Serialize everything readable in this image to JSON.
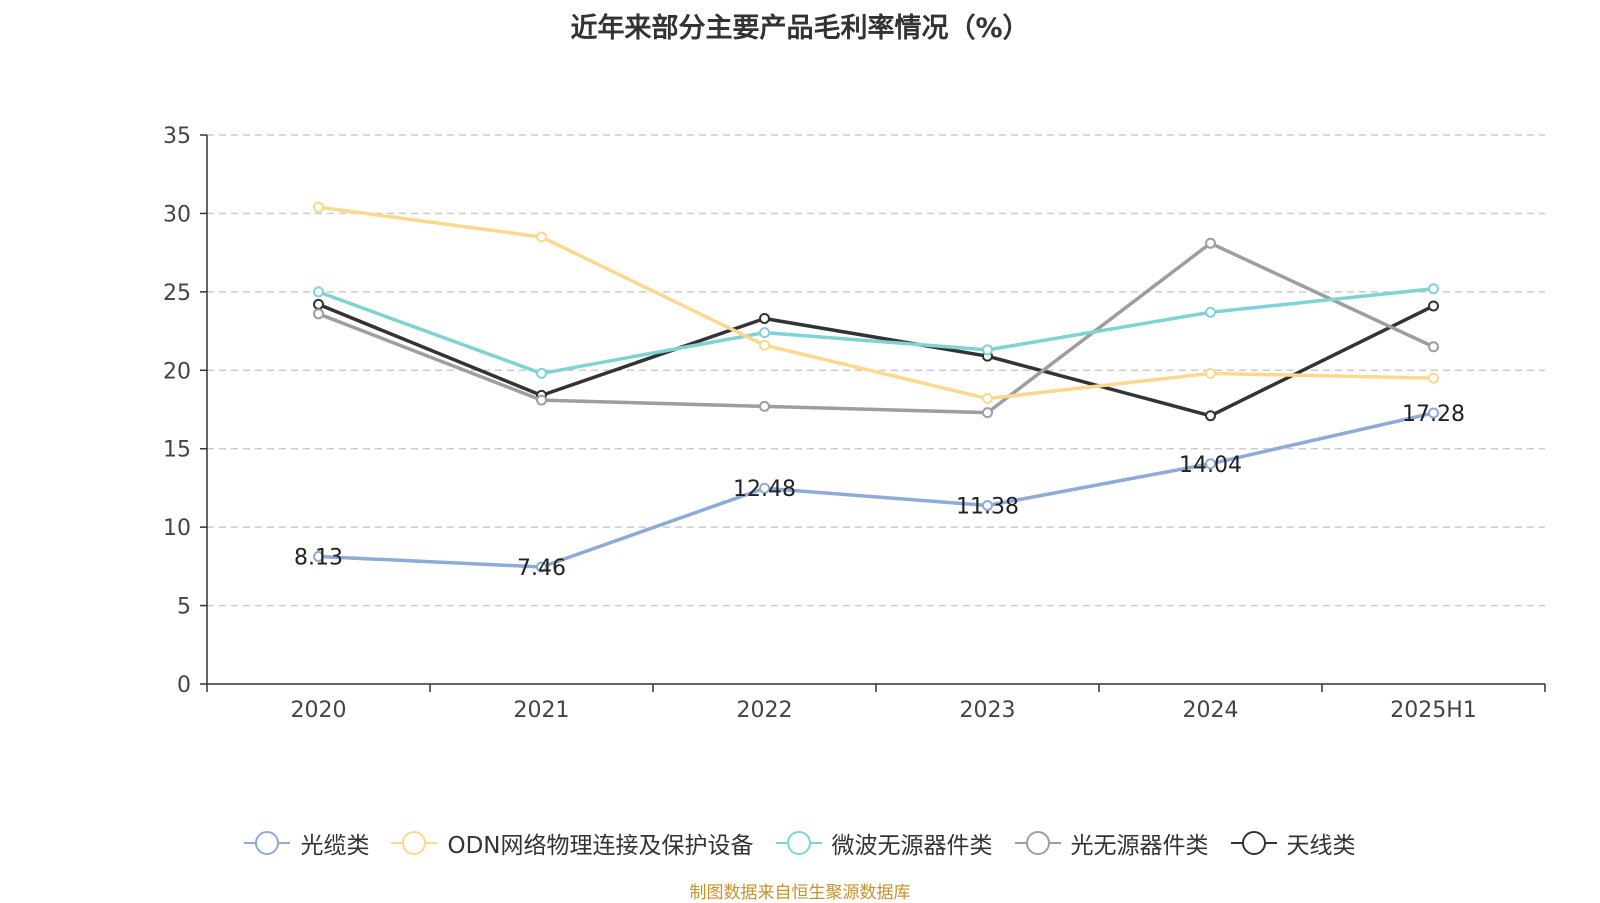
{
  "title": "近年来部分主要产品毛利率情况（%）",
  "source_note": "制图数据来自恒生聚源数据库",
  "chart_data": {
    "type": "line",
    "categories": [
      "2020",
      "2021",
      "2022",
      "2023",
      "2024",
      "2025H1"
    ],
    "ylim": [
      0,
      35
    ],
    "yticks": [
      0,
      5,
      10,
      15,
      20,
      25,
      30,
      35
    ],
    "grid": true,
    "legend_position": "bottom",
    "series": [
      {
        "name": "光缆类",
        "color": "#8eaad8",
        "values": [
          8.13,
          7.46,
          12.48,
          11.38,
          14.04,
          17.28
        ],
        "labels": [
          "8.13",
          "7.46",
          "12.48",
          "11.38",
          "14.04",
          "17.28"
        ]
      },
      {
        "name": "ODN网络物理连接及保护设备",
        "color": "#fbd98c",
        "values": [
          30.4,
          28.5,
          21.6,
          18.2,
          19.8,
          19.5
        ]
      },
      {
        "name": "微波无源器件类",
        "color": "#7fd3d6",
        "values": [
          25.0,
          19.8,
          22.4,
          21.3,
          23.7,
          25.2
        ]
      },
      {
        "name": "光无源器件类",
        "color": "#9e9e9e",
        "values": [
          23.6,
          18.1,
          17.7,
          17.3,
          28.1,
          21.5
        ]
      },
      {
        "name": "天线类",
        "color": "#333333",
        "values": [
          24.2,
          18.4,
          23.3,
          20.9,
          17.1,
          24.1
        ]
      }
    ]
  }
}
